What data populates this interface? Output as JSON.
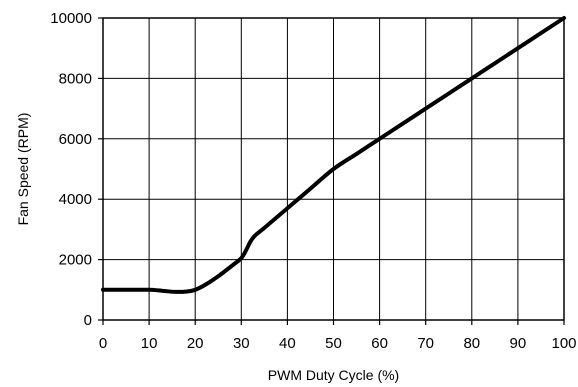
{
  "chart_data": {
    "type": "line",
    "title": "",
    "xlabel": "PWM Duty Cycle (%)",
    "ylabel": "Fan Speed (RPM)",
    "xlim": [
      0,
      100
    ],
    "ylim": [
      0,
      10000
    ],
    "x_ticks": [
      0,
      10,
      20,
      30,
      40,
      50,
      60,
      70,
      80,
      90,
      100
    ],
    "y_ticks": [
      0,
      2000,
      4000,
      6000,
      8000,
      10000
    ],
    "grid": true,
    "legend": "none",
    "colors": {
      "line": "#000000",
      "grid": "#000000",
      "background": "#ffffff"
    },
    "series": [
      {
        "x": [
          0,
          5,
          10,
          12,
          14,
          16,
          18,
          20,
          22,
          25,
          28,
          30,
          31,
          32,
          33,
          35,
          40,
          45,
          50,
          55,
          60,
          65,
          70,
          75,
          80,
          85,
          90,
          95,
          100
        ],
        "y": [
          1000,
          1000,
          1000,
          980,
          950,
          930,
          940,
          1000,
          1150,
          1450,
          1800,
          2050,
          2300,
          2600,
          2800,
          3050,
          3700,
          4350,
          5000,
          5500,
          6000,
          6500,
          7000,
          7500,
          8000,
          8500,
          9000,
          9500,
          10000
        ]
      }
    ]
  }
}
